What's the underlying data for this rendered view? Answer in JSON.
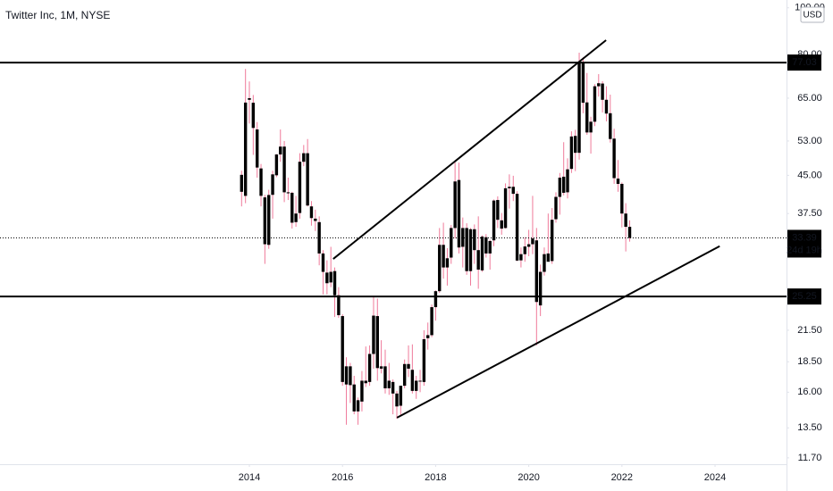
{
  "chart_data": {
    "type": "candlestick",
    "title": "Twitter Inc, 1M, NYSE",
    "currency": "USD",
    "log_scale": true,
    "body_color": "#000000",
    "wick_color": "#ef7a9a",
    "line_color": "#000000",
    "countdown": "24d 19h",
    "x": [
      2013.833,
      2013.917,
      2014.0,
      2014.083,
      2014.167,
      2014.25,
      2014.333,
      2014.417,
      2014.5,
      2014.583,
      2014.667,
      2014.75,
      2014.833,
      2014.917,
      2015.0,
      2015.083,
      2015.167,
      2015.25,
      2015.333,
      2015.417,
      2015.5,
      2015.583,
      2015.667,
      2015.75,
      2015.833,
      2015.917,
      2016.0,
      2016.083,
      2016.167,
      2016.25,
      2016.333,
      2016.417,
      2016.5,
      2016.583,
      2016.667,
      2016.75,
      2016.833,
      2016.917,
      2017.0,
      2017.083,
      2017.167,
      2017.25,
      2017.333,
      2017.417,
      2017.5,
      2017.583,
      2017.667,
      2017.75,
      2017.833,
      2017.917,
      2018.0,
      2018.083,
      2018.167,
      2018.25,
      2018.333,
      2018.417,
      2018.5,
      2018.583,
      2018.667,
      2018.75,
      2018.833,
      2018.917,
      2019.0,
      2019.083,
      2019.167,
      2019.25,
      2019.333,
      2019.417,
      2019.5,
      2019.583,
      2019.667,
      2019.75,
      2019.833,
      2019.917,
      2020.0,
      2020.083,
      2020.167,
      2020.25,
      2020.333,
      2020.417,
      2020.5,
      2020.583,
      2020.667,
      2020.75,
      2020.833,
      2020.917,
      2021.0,
      2021.083,
      2021.167,
      2021.25,
      2021.333,
      2021.417,
      2021.5,
      2021.583,
      2021.667,
      2021.75,
      2021.833,
      2021.917,
      2022.0,
      2022.083,
      2022.167
    ],
    "open": [
      45.1,
      40.8,
      65,
      63.6,
      56,
      46.5,
      40.5,
      32.3,
      41,
      45,
      49.7,
      51.6,
      41.5,
      41.4,
      36,
      37.6,
      48,
      50,
      38.8,
      36.6,
      36,
      31,
      28.3,
      27,
      28.5,
      25.4,
      23,
      16.6,
      18.1,
      16.6,
      14.6,
      15.3,
      16.9,
      16.8,
      19.2,
      23,
      17.9,
      18.1,
      16.3,
      16.8,
      15.9,
      15,
      16.5,
      18.3,
      17.8,
      16.1,
      16.9,
      16.8,
      20.7,
      21,
      24,
      25.9,
      32.3,
      29,
      30.4,
      35,
      44,
      32,
      35,
      28.5,
      34.8,
      31.5,
      28.6,
      33.5,
      31,
      33,
      40,
      36.3,
      35,
      42.3,
      42.6,
      41.2,
      30,
      30.9,
      32,
      32.4,
      33,
      24.2,
      28.4,
      31,
      29.9,
      36.5,
      40.6,
      44.7,
      41.5,
      46.4,
      54.3,
      50.1,
      77,
      63.7,
      55.2,
      58.1,
      68.8,
      69.7,
      64.5,
      60.5,
      53.6,
      44.3,
      43.2,
      37.5,
      35.2
    ],
    "high": [
      46,
      74.7,
      70.4,
      66,
      58,
      47.5,
      41,
      42,
      46,
      49.8,
      55.99,
      53,
      44.5,
      41.6,
      40.8,
      50,
      52,
      53.5,
      39.8,
      38.2,
      37,
      31.5,
      30,
      32,
      29,
      26.4,
      23.2,
      18.9,
      18.4,
      17.3,
      15.6,
      17.7,
      19.9,
      20,
      25.25,
      25,
      20.5,
      19.6,
      18.4,
      17,
      16.1,
      16.4,
      18.7,
      20,
      20.1,
      17.3,
      17.8,
      21.5,
      22.3,
      24.3,
      26,
      35,
      35.9,
      31.8,
      35.5,
      47.8,
      47.8,
      36.8,
      35.8,
      35,
      35.6,
      37,
      33.8,
      34,
      33.1,
      40.1,
      40.7,
      37.6,
      43.3,
      45.2,
      44.9,
      41.7,
      31.9,
      33.5,
      34.7,
      40.8,
      35,
      29.4,
      31.9,
      37.5,
      38.5,
      41.5,
      45.5,
      52.7,
      48.8,
      55.5,
      55.9,
      80.75,
      79,
      73.3,
      59.5,
      69.5,
      72.9,
      70.5,
      68.8,
      66.1,
      56.2,
      48.4,
      43.5,
      39.4,
      36.3
    ],
    "low": [
      38.8,
      39.4,
      57.6,
      49.6,
      44.5,
      38.8,
      29.5,
      31.7,
      36.6,
      44.6,
      48,
      39.6,
      40,
      34.9,
      35.2,
      36.6,
      47,
      38.8,
      35.4,
      34.5,
      29.3,
      25.5,
      25.5,
      26.4,
      22.9,
      22.8,
      16.5,
      13.7,
      15.2,
      14.4,
      13.7,
      14.6,
      16.4,
      16.5,
      17.9,
      16.9,
      17.5,
      15.9,
      15.8,
      14.4,
      14.1,
      14.3,
      16.3,
      17.2,
      15.9,
      15.5,
      16,
      16.5,
      19.6,
      20.8,
      22.5,
      25.7,
      27.5,
      26.6,
      29.5,
      33.3,
      31,
      29,
      28,
      26.6,
      29.5,
      26.2,
      28.4,
      30.4,
      28.7,
      32.1,
      35,
      33.9,
      34.9,
      38.4,
      39.8,
      29.9,
      29,
      29.8,
      30.6,
      30.9,
      20,
      23,
      27.9,
      30.3,
      29.5,
      35.9,
      37.3,
      40.9,
      40.3,
      45.5,
      45.9,
      48.5,
      60.5,
      54.6,
      49.9,
      56.9,
      65.5,
      60.7,
      58.2,
      52.6,
      43.2,
      41.6,
      35.1,
      31.3,
      32.8
    ],
    "close": [
      41.6,
      63.65,
      64.5,
      56.4,
      46.7,
      40.8,
      32.4,
      40.97,
      45.2,
      49.7,
      51.6,
      41.5,
      41.3,
      35.9,
      37.5,
      48,
      50,
      38.96,
      36.7,
      36.2,
      31,
      28.4,
      26.9,
      28.4,
      25.4,
      23.1,
      16.8,
      18.1,
      16.55,
      14.6,
      15.4,
      16.9,
      16.7,
      19.2,
      23.05,
      17.95,
      18.1,
      16.3,
      16.9,
      15.9,
      14.95,
      16.5,
      18.3,
      17.9,
      16.1,
      16.9,
      16.9,
      20.6,
      21,
      24,
      25.9,
      32.3,
      29,
      30.3,
      35,
      43.7,
      31.9,
      35,
      28.5,
      34.8,
      31.5,
      28.7,
      33.6,
      31,
      32.9,
      39.9,
      36.4,
      34.9,
      42.3,
      42.6,
      41.2,
      29.97,
      30.9,
      32.05,
      32.4,
      33.3,
      24.6,
      28.4,
      30.9,
      29.8,
      36.4,
      40.6,
      44.5,
      41.4,
      46.3,
      54.15,
      50.1,
      77.06,
      63.6,
      55.2,
      58.1,
      68.8,
      69.8,
      64.5,
      60.4,
      53.5,
      44.4,
      43.2,
      37.5,
      35.2,
      33.39
    ],
    "hlines": [
      77.03,
      25.25
    ],
    "trendlines": [
      {
        "x": [
          2015.8,
          2021.66
        ],
        "y": [
          30.2,
          85.7
        ]
      },
      {
        "x": [
          2017.17,
          2024.1
        ],
        "y": [
          14.17,
          32.1
        ]
      }
    ],
    "xlim": [
      2008.645,
      2025.535
    ],
    "xticks": [
      2014,
      2016,
      2018,
      2020,
      2022,
      2024
    ],
    "ylim": [
      11.35,
      103.8
    ],
    "yticks": [
      {
        "value": 100,
        "label": "100.00"
      },
      {
        "value": 80,
        "label": "80.00"
      },
      {
        "value": 65,
        "label": "65.00"
      },
      {
        "value": 53,
        "label": "53.00"
      },
      {
        "value": 45,
        "label": "45.00"
      },
      {
        "value": 37.5,
        "label": "37.50"
      },
      {
        "value": 21.5,
        "label": "21.50"
      },
      {
        "value": 18.5,
        "label": "18.50"
      },
      {
        "value": 16,
        "label": "16.00"
      },
      {
        "value": 13.5,
        "label": "13.50"
      },
      {
        "value": 11.7,
        "label": "11.70"
      }
    ]
  }
}
